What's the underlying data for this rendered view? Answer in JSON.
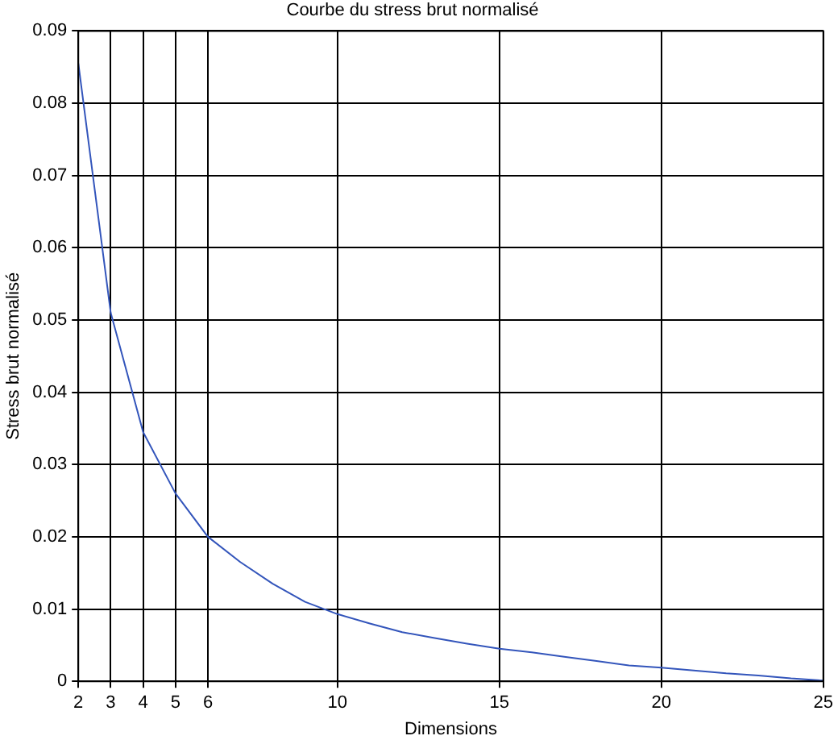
{
  "chart_data": {
    "type": "line",
    "title": "Courbe du stress brut normalisé",
    "xlabel": "Dimensions",
    "ylabel": "Stress brut normalisé",
    "x": [
      2,
      3,
      4,
      5,
      6,
      7,
      8,
      9,
      10,
      11,
      12,
      13,
      14,
      15,
      16,
      17,
      18,
      19,
      20,
      21,
      22,
      23,
      24,
      25
    ],
    "series": [
      {
        "color": "#3355bb",
        "values": [
          0.0855,
          0.051,
          0.0345,
          0.026,
          0.02,
          0.0165,
          0.0135,
          0.011,
          0.0093,
          0.008,
          0.0068,
          0.006,
          0.0052,
          0.0045,
          0.004,
          0.0034,
          0.0028,
          0.0022,
          0.0019,
          0.0015,
          0.0011,
          0.0008,
          0.0004,
          0.0001
        ]
      }
    ],
    "xlim": [
      2,
      25
    ],
    "xticks": [
      2,
      3,
      4,
      5,
      6,
      10,
      15,
      20,
      25
    ],
    "ylim": [
      0,
      0.09
    ],
    "yticks": [
      0,
      0.01,
      0.02,
      0.03,
      0.04,
      0.05,
      0.06,
      0.07,
      0.08,
      0.09
    ],
    "grid": true,
    "legend": false,
    "marker": "none",
    "line_style": "solid"
  }
}
